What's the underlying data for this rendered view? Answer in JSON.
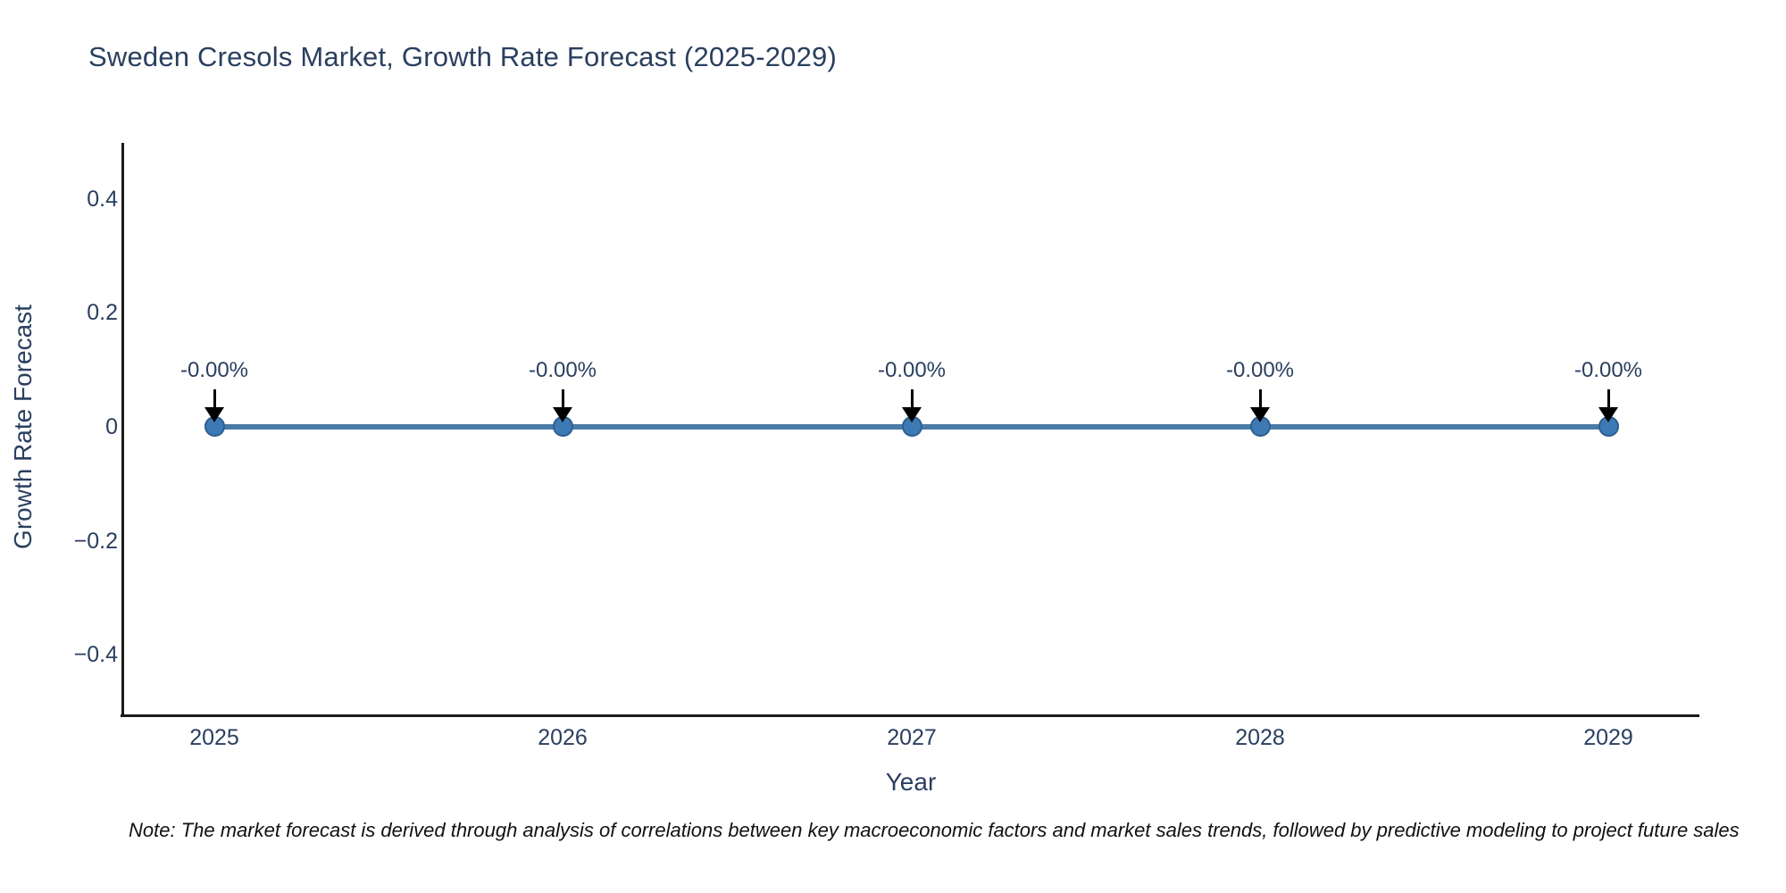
{
  "title": "Sweden Cresols Market, Growth Rate Forecast (2025-2029)",
  "note": "Note: The market forecast is derived through analysis of correlations between key macroeconomic factors and market sales trends, followed by predictive modeling to project future sales",
  "axes": {
    "x": {
      "title": "Year",
      "ticks": [
        "2025",
        "2026",
        "2027",
        "2028",
        "2029"
      ]
    },
    "y": {
      "title": "Growth Rate Forecast",
      "ticks": [
        "0.4",
        "0.2",
        "0",
        "−0.2",
        "−0.4"
      ]
    }
  },
  "chart_data": {
    "type": "line",
    "title": "Sweden Cresols Market, Growth Rate Forecast (2025-2029)",
    "xlabel": "Year",
    "ylabel": "Growth Rate Forecast",
    "x": [
      2025,
      2026,
      2027,
      2028,
      2029
    ],
    "series": [
      {
        "name": "Growth Rate Forecast",
        "values": [
          0,
          0,
          0,
          0,
          0
        ]
      }
    ],
    "point_labels": [
      "-0.00%",
      "-0.00%",
      "-0.00%",
      "-0.00%",
      "-0.00%"
    ],
    "xlim": [
      2024.74,
      2029.26
    ],
    "ylim": [
      -0.51,
      0.5
    ],
    "ytick_step": 0.2,
    "grid": false,
    "legend": false,
    "colors": {
      "line": "#4a7ba6",
      "marker": "#3d7ab5",
      "marker_border": "#2e6091",
      "arrow": "#000000",
      "text": "#2a3f5f",
      "axis_line": "#1a1a1a",
      "note_text": "#111111",
      "background": "#ffffff"
    }
  }
}
